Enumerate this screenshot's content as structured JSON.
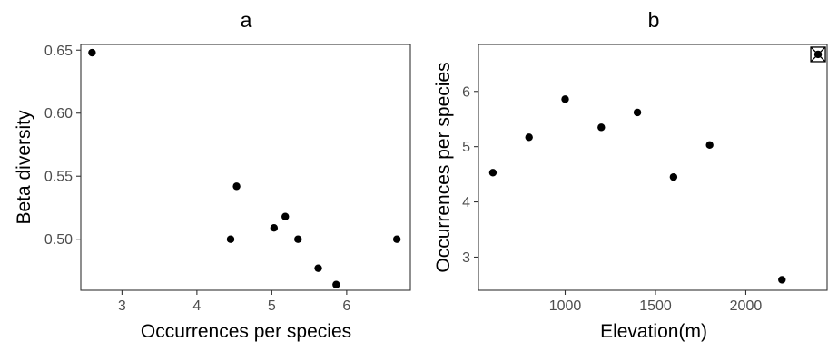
{
  "chart_data": [
    {
      "type": "scatter",
      "title": "a",
      "xlabel": "Occurrences per species",
      "ylabel": "Beta diversity",
      "xlim": [
        2.45,
        6.85
      ],
      "ylim": [
        0.4595,
        0.6545
      ],
      "xticks": [
        3,
        4,
        5,
        6
      ],
      "yticks": [
        0.5,
        0.55,
        0.6,
        0.65
      ],
      "xtick_labels": [
        "3",
        "4",
        "5",
        "6"
      ],
      "ytick_labels": [
        "0.50",
        "0.55",
        "0.60",
        "0.65"
      ],
      "grid": false,
      "points": [
        {
          "x": 2.6,
          "y": 0.648
        },
        {
          "x": 4.45,
          "y": 0.5
        },
        {
          "x": 4.53,
          "y": 0.542
        },
        {
          "x": 5.03,
          "y": 0.509
        },
        {
          "x": 5.18,
          "y": 0.518
        },
        {
          "x": 5.35,
          "y": 0.5
        },
        {
          "x": 5.62,
          "y": 0.477
        },
        {
          "x": 5.86,
          "y": 0.464
        },
        {
          "x": 6.67,
          "y": 0.5
        }
      ]
    },
    {
      "type": "scatter",
      "title": "b",
      "xlabel": "Elevation(m)",
      "ylabel": "Occurrences per species",
      "xlim": [
        520,
        2450
      ],
      "ylim": [
        2.4,
        6.85
      ],
      "xticks": [
        1000,
        1500,
        2000
      ],
      "yticks": [
        3,
        4,
        5,
        6
      ],
      "xtick_labels": [
        "1000",
        "1500",
        "2000"
      ],
      "ytick_labels": [
        "3",
        "4",
        "5",
        "6"
      ],
      "grid": false,
      "points": [
        {
          "x": 600,
          "y": 4.53
        },
        {
          "x": 800,
          "y": 5.17
        },
        {
          "x": 1000,
          "y": 5.86
        },
        {
          "x": 1200,
          "y": 5.35
        },
        {
          "x": 1400,
          "y": 5.62
        },
        {
          "x": 1600,
          "y": 4.45
        },
        {
          "x": 1800,
          "y": 5.03
        },
        {
          "x": 2200,
          "y": 2.59
        },
        {
          "x": 2400,
          "y": 6.67,
          "marker": "boxed-cross"
        }
      ]
    }
  ]
}
